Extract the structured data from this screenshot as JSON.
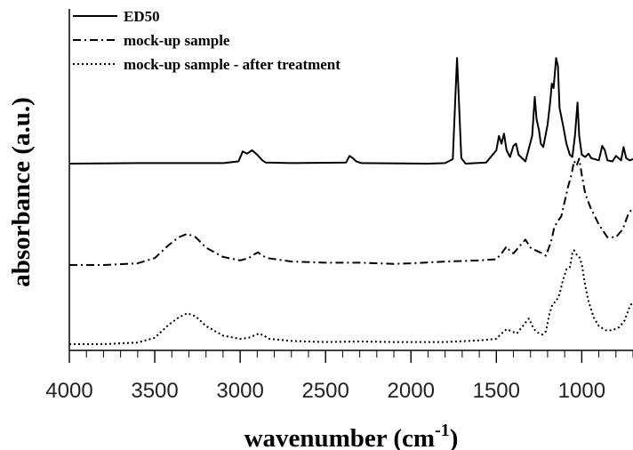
{
  "chart_data": {
    "type": "line",
    "title": "",
    "xlabel": "wavenumber (cm",
    "xlabel_sup": "-1",
    "xlabel_close": ")",
    "ylabel": "absorbance (a.u.)",
    "xlim": [
      4000,
      700
    ],
    "x_reversed": true,
    "x_ticks": [
      4000,
      3500,
      3000,
      2500,
      2000,
      1500,
      1000
    ],
    "y_ticks_shown": false,
    "grid": false,
    "legend": "top-left",
    "series": [
      {
        "name": "ED50",
        "style": "solid",
        "color": "#000000",
        "baseline": 0.0,
        "points": [
          [
            4000,
            0.0
          ],
          [
            3600,
            0.005
          ],
          [
            3100,
            0.005
          ],
          [
            3010,
            0.02
          ],
          [
            2985,
            0.11
          ],
          [
            2960,
            0.09
          ],
          [
            2930,
            0.12
          ],
          [
            2900,
            0.08
          ],
          [
            2870,
            0.03
          ],
          [
            2850,
            0.01
          ],
          [
            2700,
            0.005
          ],
          [
            2380,
            0.01
          ],
          [
            2360,
            0.07
          ],
          [
            2340,
            0.05
          ],
          [
            2320,
            0.02
          ],
          [
            2290,
            0.005
          ],
          [
            1900,
            0.0
          ],
          [
            1800,
            0.005
          ],
          [
            1755,
            0.04
          ],
          [
            1740,
            0.6
          ],
          [
            1730,
            0.95
          ],
          [
            1720,
            0.6
          ],
          [
            1705,
            0.05
          ],
          [
            1680,
            0.0
          ],
          [
            1560,
            0.01
          ],
          [
            1500,
            0.12
          ],
          [
            1485,
            0.25
          ],
          [
            1470,
            0.18
          ],
          [
            1455,
            0.27
          ],
          [
            1440,
            0.12
          ],
          [
            1420,
            0.06
          ],
          [
            1400,
            0.16
          ],
          [
            1385,
            0.18
          ],
          [
            1370,
            0.08
          ],
          [
            1330,
            0.02
          ],
          [
            1290,
            0.25
          ],
          [
            1275,
            0.6
          ],
          [
            1265,
            0.4
          ],
          [
            1250,
            0.3
          ],
          [
            1240,
            0.18
          ],
          [
            1225,
            0.15
          ],
          [
            1200,
            0.35
          ],
          [
            1185,
            0.55
          ],
          [
            1175,
            0.72
          ],
          [
            1165,
            0.68
          ],
          [
            1150,
            0.95
          ],
          [
            1140,
            0.88
          ],
          [
            1130,
            0.5
          ],
          [
            1110,
            0.35
          ],
          [
            1090,
            0.18
          ],
          [
            1070,
            0.08
          ],
          [
            1055,
            0.06
          ],
          [
            1040,
            0.25
          ],
          [
            1025,
            0.55
          ],
          [
            1015,
            0.25
          ],
          [
            1000,
            0.08
          ],
          [
            980,
            0.06
          ],
          [
            960,
            0.09
          ],
          [
            945,
            0.05
          ],
          [
            900,
            0.03
          ],
          [
            880,
            0.16
          ],
          [
            865,
            0.12
          ],
          [
            850,
            0.03
          ],
          [
            820,
            0.02
          ],
          [
            800,
            0.07
          ],
          [
            785,
            0.05
          ],
          [
            770,
            0.03
          ],
          [
            755,
            0.15
          ],
          [
            740,
            0.05
          ],
          [
            720,
            0.03
          ],
          [
            700,
            0.04
          ]
        ]
      },
      {
        "name": "mock-up sample",
        "style": "dashdot",
        "color": "#000000",
        "baseline": 0.0,
        "points": [
          [
            4000,
            0.0
          ],
          [
            3800,
            0.0
          ],
          [
            3600,
            0.015
          ],
          [
            3500,
            0.06
          ],
          [
            3420,
            0.17
          ],
          [
            3360,
            0.24
          ],
          [
            3310,
            0.27
          ],
          [
            3260,
            0.24
          ],
          [
            3200,
            0.15
          ],
          [
            3100,
            0.07
          ],
          [
            3000,
            0.04
          ],
          [
            2950,
            0.06
          ],
          [
            2920,
            0.09
          ],
          [
            2895,
            0.11
          ],
          [
            2870,
            0.08
          ],
          [
            2840,
            0.06
          ],
          [
            2700,
            0.03
          ],
          [
            2500,
            0.02
          ],
          [
            2300,
            0.02
          ],
          [
            2100,
            0.01
          ],
          [
            2000,
            0.015
          ],
          [
            1800,
            0.03
          ],
          [
            1600,
            0.04
          ],
          [
            1500,
            0.05
          ],
          [
            1470,
            0.1
          ],
          [
            1440,
            0.16
          ],
          [
            1420,
            0.12
          ],
          [
            1400,
            0.1
          ],
          [
            1360,
            0.17
          ],
          [
            1330,
            0.22
          ],
          [
            1300,
            0.15
          ],
          [
            1260,
            0.12
          ],
          [
            1230,
            0.1
          ],
          [
            1210,
            0.08
          ],
          [
            1180,
            0.2
          ],
          [
            1160,
            0.33
          ],
          [
            1140,
            0.38
          ],
          [
            1120,
            0.42
          ],
          [
            1100,
            0.55
          ],
          [
            1080,
            0.68
          ],
          [
            1060,
            0.78
          ],
          [
            1045,
            0.9
          ],
          [
            1030,
            0.86
          ],
          [
            1015,
            0.92
          ],
          [
            1000,
            0.78
          ],
          [
            980,
            0.62
          ],
          [
            950,
            0.5
          ],
          [
            900,
            0.35
          ],
          [
            850,
            0.24
          ],
          [
            800,
            0.24
          ],
          [
            760,
            0.31
          ],
          [
            730,
            0.43
          ],
          [
            700,
            0.5
          ]
        ]
      },
      {
        "name": "mock-up sample - after treatment",
        "style": "dotted",
        "color": "#000000",
        "baseline": 0.0,
        "points": [
          [
            4000,
            0.0
          ],
          [
            3800,
            0.0
          ],
          [
            3600,
            0.015
          ],
          [
            3500,
            0.06
          ],
          [
            3420,
            0.18
          ],
          [
            3360,
            0.25
          ],
          [
            3310,
            0.29
          ],
          [
            3260,
            0.26
          ],
          [
            3200,
            0.17
          ],
          [
            3100,
            0.08
          ],
          [
            3000,
            0.05
          ],
          [
            2950,
            0.06
          ],
          [
            2920,
            0.08
          ],
          [
            2890,
            0.1
          ],
          [
            2860,
            0.08
          ],
          [
            2830,
            0.05
          ],
          [
            2700,
            0.03
          ],
          [
            2500,
            0.02
          ],
          [
            2300,
            0.025
          ],
          [
            2100,
            0.02
          ],
          [
            2000,
            0.02
          ],
          [
            1800,
            0.02
          ],
          [
            1600,
            0.035
          ],
          [
            1500,
            0.05
          ],
          [
            1470,
            0.1
          ],
          [
            1440,
            0.14
          ],
          [
            1410,
            0.12
          ],
          [
            1380,
            0.1
          ],
          [
            1340,
            0.18
          ],
          [
            1310,
            0.24
          ],
          [
            1280,
            0.14
          ],
          [
            1250,
            0.1
          ],
          [
            1230,
            0.09
          ],
          [
            1210,
            0.12
          ],
          [
            1190,
            0.28
          ],
          [
            1170,
            0.38
          ],
          [
            1150,
            0.4
          ],
          [
            1130,
            0.47
          ],
          [
            1110,
            0.6
          ],
          [
            1090,
            0.7
          ],
          [
            1070,
            0.72
          ],
          [
            1055,
            0.85
          ],
          [
            1045,
            0.88
          ],
          [
            1030,
            0.84
          ],
          [
            1015,
            0.82
          ],
          [
            1000,
            0.75
          ],
          [
            980,
            0.55
          ],
          [
            960,
            0.4
          ],
          [
            930,
            0.25
          ],
          [
            900,
            0.17
          ],
          [
            860,
            0.13
          ],
          [
            820,
            0.13
          ],
          [
            780,
            0.16
          ],
          [
            750,
            0.22
          ],
          [
            720,
            0.35
          ],
          [
            700,
            0.4
          ]
        ]
      }
    ]
  }
}
